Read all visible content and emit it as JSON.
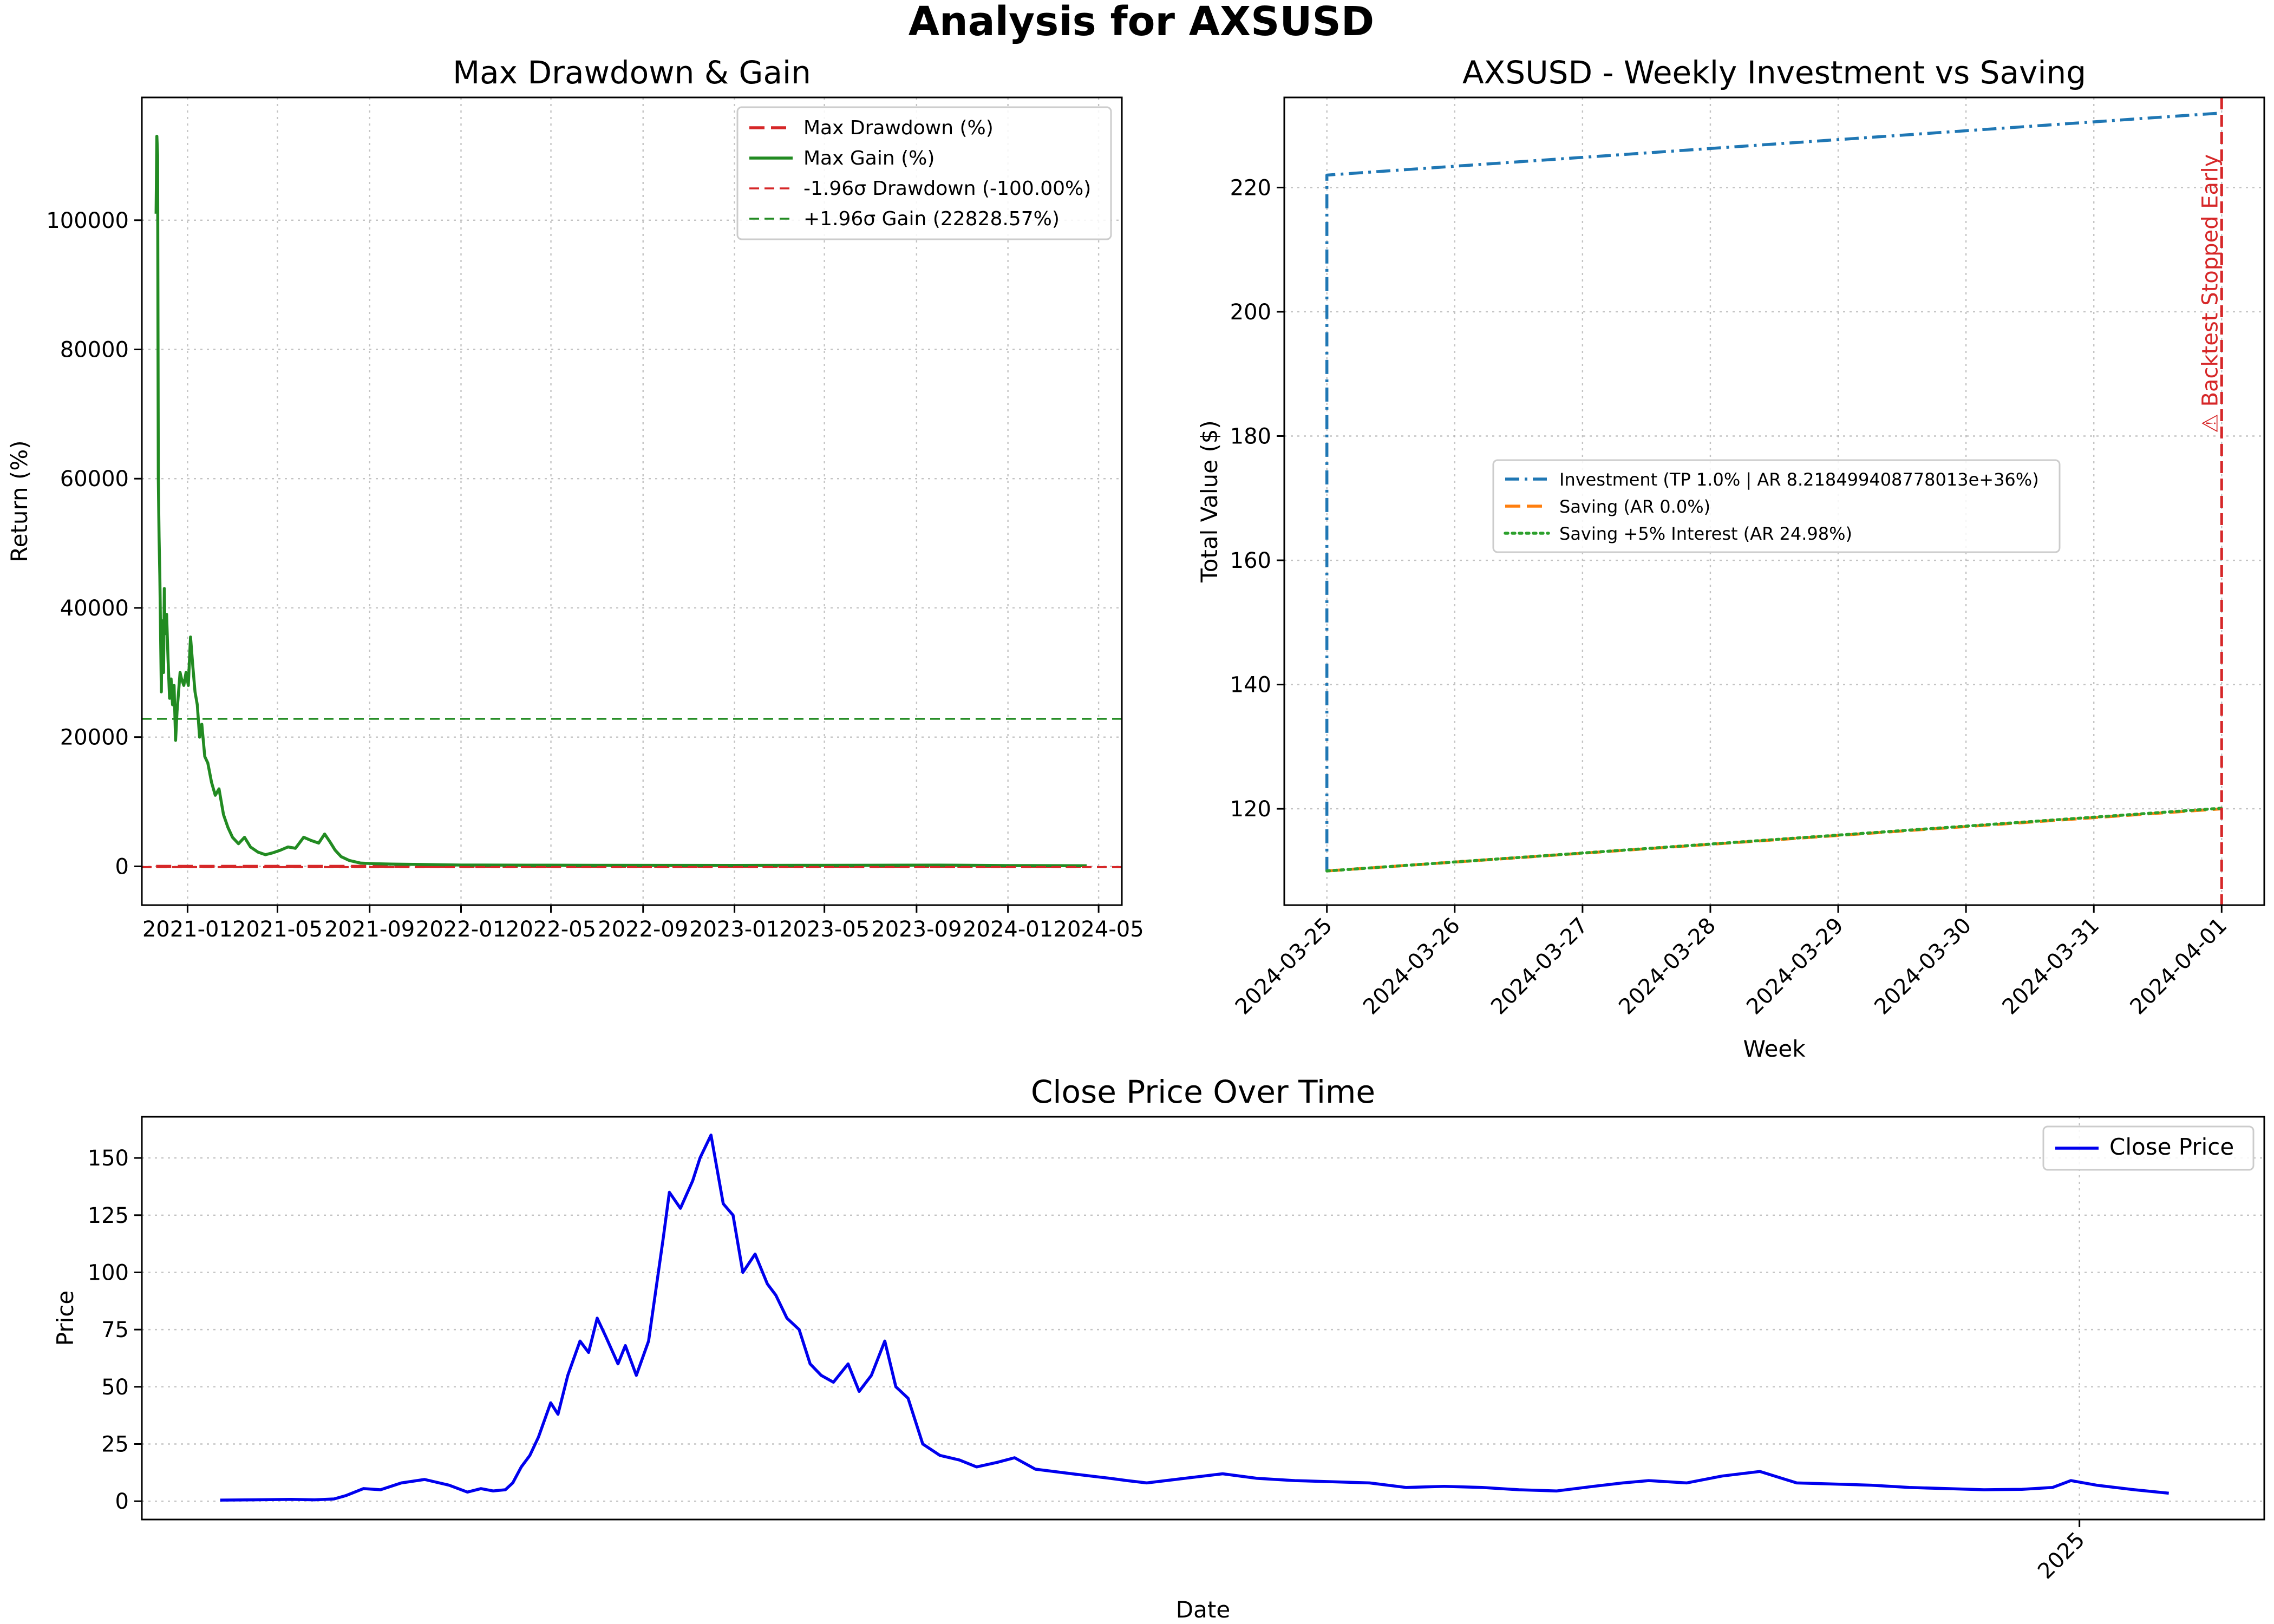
{
  "figure": {
    "title": "Analysis for AXSUSD"
  },
  "chart_data": [
    {
      "id": "drawdown",
      "type": "line",
      "title": "Max Drawdown & Gain",
      "xlabel": "",
      "ylabel": "Return (%)",
      "xlim": [
        "2020-11-01",
        "2024-06-01"
      ],
      "ylim": [
        -6000,
        119000
      ],
      "x_ticks": [
        "2021-01-01",
        "2021-05-01",
        "2021-09-01",
        "2022-01-01",
        "2022-05-01",
        "2022-09-01",
        "2023-01-01",
        "2023-05-01",
        "2023-09-01",
        "2024-01-01",
        "2024-05-01"
      ],
      "x_tick_labels": [
        "2021-01",
        "2021-05",
        "2021-09",
        "2022-01",
        "2022-05",
        "2022-09",
        "2023-01",
        "2023-05",
        "2023-09",
        "2024-01",
        "2024-05"
      ],
      "y_ticks": [
        0,
        20000,
        40000,
        60000,
        80000,
        100000
      ],
      "y_tick_labels": [
        "0",
        "20000",
        "40000",
        "60000",
        "80000",
        "100000"
      ],
      "grid": true,
      "legend_position": "top-right",
      "series": [
        {
          "name": "Max Drawdown (%)",
          "color": "#d62728",
          "style": "dashed",
          "x": [
            "2020-11-20",
            "2024-04-15"
          ],
          "y": [
            0,
            0
          ]
        },
        {
          "name": "Max Gain (%)",
          "color": "#228b22",
          "style": "solid",
          "x": [
            "2020-11-20",
            "2020-11-21",
            "2020-11-22",
            "2020-11-23",
            "2020-11-24",
            "2020-11-25",
            "2020-11-27",
            "2020-11-28",
            "2020-11-30",
            "2020-12-01",
            "2020-12-02",
            "2020-12-04",
            "2020-12-06",
            "2020-12-08",
            "2020-12-10",
            "2020-12-12",
            "2020-12-14",
            "2020-12-16",
            "2020-12-18",
            "2020-12-20",
            "2020-12-22",
            "2020-12-24",
            "2020-12-27",
            "2020-12-30",
            "2021-01-02",
            "2021-01-05",
            "2021-01-08",
            "2021-01-11",
            "2021-01-14",
            "2021-01-17",
            "2021-01-20",
            "2021-01-24",
            "2021-01-28",
            "2021-02-02",
            "2021-02-07",
            "2021-02-12",
            "2021-02-18",
            "2021-02-24",
            "2021-03-02",
            "2021-03-10",
            "2021-03-18",
            "2021-03-26",
            "2021-04-05",
            "2021-04-15",
            "2021-04-25",
            "2021-05-05",
            "2021-05-15",
            "2021-05-25",
            "2021-06-05",
            "2021-06-15",
            "2021-06-25",
            "2021-07-03",
            "2021-07-10",
            "2021-07-17",
            "2021-07-25",
            "2021-08-05",
            "2021-08-20",
            "2021-09-10",
            "2021-10-01",
            "2021-11-01",
            "2021-12-01",
            "2022-01-01",
            "2022-04-01",
            "2022-07-01",
            "2022-10-01",
            "2023-01-01",
            "2023-04-01",
            "2023-07-01",
            "2023-10-01",
            "2024-01-01",
            "2024-04-15"
          ],
          "y": [
            101000,
            113000,
            110000,
            60000,
            51000,
            45000,
            27000,
            38000,
            30000,
            43000,
            36000,
            39000,
            32000,
            26000,
            29000,
            25000,
            28000,
            19500,
            24000,
            27000,
            30000,
            29000,
            28000,
            30000,
            28000,
            35500,
            31000,
            27000,
            25000,
            20000,
            22000,
            17000,
            16000,
            13000,
            11000,
            12000,
            8000,
            6000,
            4500,
            3500,
            4500,
            3000,
            2200,
            1800,
            2100,
            2500,
            3000,
            2800,
            4500,
            4000,
            3600,
            5000,
            3800,
            2500,
            1500,
            900,
            500,
            400,
            350,
            300,
            250,
            200,
            180,
            160,
            150,
            140,
            160,
            170,
            190,
            120,
            100
          ]
        },
        {
          "name": "-1.96σ Drawdown (-100.00%)",
          "color": "#d62728",
          "style": "dashed-thin",
          "x": [
            "2020-11-01",
            "2024-06-01"
          ],
          "y": [
            -100,
            -100
          ]
        },
        {
          "name": "+1.96σ Gain (22828.57%)",
          "color": "#228b22",
          "style": "dashed-thin",
          "x": [
            "2020-11-01",
            "2024-06-01"
          ],
          "y": [
            22828.57,
            22828.57
          ]
        }
      ]
    },
    {
      "id": "investment",
      "type": "line",
      "title": "AXSUSD - Weekly Investment vs Saving",
      "xlabel": "Week",
      "ylabel": "Total Value ($)",
      "xlim": [
        "2024-03-24 16:00",
        "2024-04-01 08:00"
      ],
      "ylim": [
        104.5,
        234.5
      ],
      "x_ticks": [
        "2024-03-25",
        "2024-03-26",
        "2024-03-27",
        "2024-03-28",
        "2024-03-29",
        "2024-03-30",
        "2024-03-31",
        "2024-04-01"
      ],
      "x_tick_labels": [
        "2024-03-25",
        "2024-03-26",
        "2024-03-27",
        "2024-03-28",
        "2024-03-29",
        "2024-03-30",
        "2024-03-31",
        "2024-04-01"
      ],
      "y_ticks": [
        120,
        140,
        160,
        180,
        200,
        220
      ],
      "y_tick_labels": [
        "120",
        "140",
        "160",
        "180",
        "200",
        "220"
      ],
      "grid": true,
      "legend_position": "center",
      "series": [
        {
          "name": "Investment (TP 1.0% | AR 8.218499408778013e+36%)",
          "color": "#1f77b4",
          "style": "dashdot",
          "x": [
            "2024-03-25",
            "2024-03-25",
            "2024-04-01"
          ],
          "y": [
            110,
            222,
            232
          ]
        },
        {
          "name": "Saving (AR 0.0%)",
          "color": "#ff7f0e",
          "style": "dashed",
          "x": [
            "2024-03-25",
            "2024-04-01"
          ],
          "y": [
            110,
            120
          ]
        },
        {
          "name": "Saving +5% Interest (AR 24.98%)",
          "color": "#2ca02c",
          "style": "dotted",
          "x": [
            "2024-03-25",
            "2024-04-01"
          ],
          "y": [
            110,
            120.1
          ]
        }
      ],
      "annotation": {
        "text": "⚠ Backtest Stopped Early",
        "x": "2024-04-01",
        "color": "#d62728"
      }
    },
    {
      "id": "price",
      "type": "line",
      "title": "Close Price Over Time",
      "xlabel": "Date",
      "ylabel": "Price",
      "xlim": [
        "2020-09-01",
        "2025-06-01"
      ],
      "ylim": [
        -8,
        168
      ],
      "x_ticks": [
        "2025-01-01"
      ],
      "x_tick_labels": [
        "2025"
      ],
      "y_ticks": [
        0,
        25,
        50,
        75,
        100,
        125,
        150
      ],
      "y_tick_labels": [
        "0",
        "25",
        "50",
        "75",
        "100",
        "125",
        "150"
      ],
      "grid": true,
      "legend_position": "top-right",
      "series": [
        {
          "name": "Close Price",
          "color": "#0000ee",
          "style": "solid",
          "x": [
            "2020-11-04",
            "2020-12-01",
            "2021-01-01",
            "2021-01-20",
            "2021-02-05",
            "2021-02-15",
            "2021-03-01",
            "2021-03-15",
            "2021-04-01",
            "2021-04-20",
            "2021-05-10",
            "2021-05-25",
            "2021-06-05",
            "2021-06-15",
            "2021-06-25",
            "2021-07-01",
            "2021-07-08",
            "2021-07-15",
            "2021-07-22",
            "2021-08-01",
            "2021-08-07",
            "2021-08-15",
            "2021-08-25",
            "2021-09-01",
            "2021-09-08",
            "2021-09-15",
            "2021-09-25",
            "2021-10-01",
            "2021-10-10",
            "2021-10-20",
            "2021-11-01",
            "2021-11-06",
            "2021-11-15",
            "2021-11-25",
            "2021-12-01",
            "2021-12-10",
            "2021-12-20",
            "2021-12-28",
            "2022-01-05",
            "2022-01-15",
            "2022-01-25",
            "2022-02-01",
            "2022-02-10",
            "2022-02-20",
            "2022-03-01",
            "2022-03-10",
            "2022-03-20",
            "2022-04-01",
            "2022-04-10",
            "2022-04-20",
            "2022-05-01",
            "2022-05-10",
            "2022-05-20",
            "2022-06-01",
            "2022-06-15",
            "2022-07-01",
            "2022-07-15",
            "2022-08-01",
            "2022-08-15",
            "2022-09-01",
            "2022-10-01",
            "2022-11-01",
            "2022-11-15",
            "2022-12-01",
            "2023-01-01",
            "2023-02-01",
            "2023-03-01",
            "2023-04-01",
            "2023-06-01",
            "2023-07-01",
            "2023-08-01",
            "2023-09-01",
            "2023-10-01",
            "2023-11-01",
            "2023-12-01",
            "2023-12-25",
            "2024-01-15",
            "2024-02-15",
            "2024-03-15",
            "2024-04-15",
            "2024-05-15",
            "2024-06-15",
            "2024-07-15",
            "2024-08-15",
            "2024-09-15",
            "2024-10-15",
            "2024-11-15",
            "2024-12-10",
            "2024-12-25",
            "2025-01-15",
            "2025-02-15",
            "2025-03-15"
          ],
          "y": [
            0.5,
            0.6,
            0.8,
            0.6,
            1.0,
            2.5,
            5.5,
            5.0,
            8.0,
            9.5,
            7.0,
            4.0,
            5.5,
            4.5,
            5.0,
            8.0,
            15.0,
            20.0,
            28.0,
            43.0,
            38.0,
            55.0,
            70.0,
            65.0,
            80.0,
            72.0,
            60.0,
            68.0,
            55.0,
            70.0,
            115.0,
            135.0,
            128.0,
            140.0,
            150.0,
            160.0,
            130.0,
            125.0,
            100.0,
            108.0,
            95.0,
            90.0,
            80.0,
            75.0,
            60.0,
            55.0,
            52.0,
            60.0,
            48.0,
            55.0,
            70.0,
            50.0,
            45.0,
            25.0,
            20.0,
            18.0,
            15.0,
            17.0,
            19.0,
            14.0,
            12.0,
            10.0,
            9.0,
            8.0,
            10.0,
            12.0,
            10.0,
            9.0,
            8.0,
            6.0,
            6.5,
            6.0,
            5.0,
            4.5,
            6.5,
            8.0,
            9.0,
            8.0,
            11.0,
            13.0,
            8.0,
            7.5,
            7.0,
            6.0,
            5.5,
            5.0,
            5.2,
            6.0,
            9.0,
            7.0,
            5.0,
            3.5
          ]
        }
      ]
    }
  ]
}
